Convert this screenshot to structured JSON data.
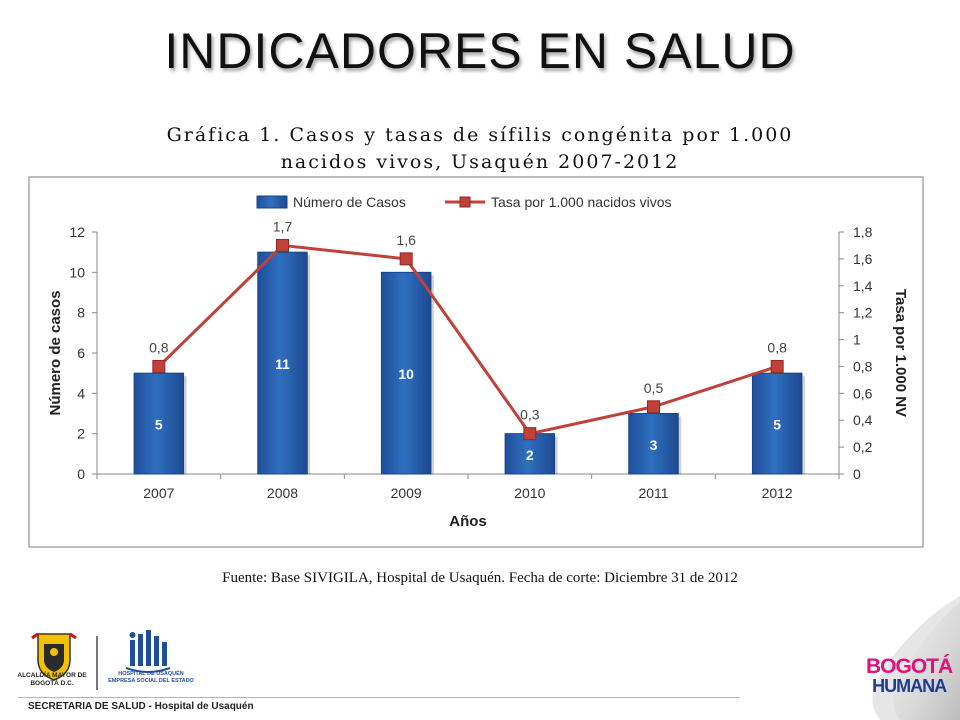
{
  "slide": {
    "title": "INDICADORES EN SALUD"
  },
  "chart": {
    "title_line1": "Gráfica 1. Casos y tasas de sífilis congénita por 1.000",
    "title_line2": "nacidos vivos, Usaquén 2007-2012"
  },
  "source": {
    "label": "Fuente",
    "text": ": Base SIVIGILA, Hospital de Usaquén. Fecha de corte: Diciembre 31 de 2012"
  },
  "footer": {
    "text": "SECRETARIA DE SALUD - Hospital de Usaquén"
  },
  "logos": {
    "left_text": "ALCALDÍA MAYOR DE BOGOTÁ D.C.",
    "left_symbol": "bogota-coat-of-arms-icon",
    "mid_text": "HOSPITAL DE USAQUÉN EMPRESA SOCIAL DEL ESTADO",
    "mid_symbol": "hospital-usaquen-logo",
    "right_top": "BOGOTÁ",
    "right_bottom": "HUMANA"
  },
  "colors": {
    "bars": "#2f6fbf",
    "line": "#c0403a",
    "markers": "#c0403a"
  },
  "chart_data": {
    "type": "bar",
    "categories": [
      "2007",
      "2008",
      "2009",
      "2010",
      "2011",
      "2012"
    ],
    "series": [
      {
        "name": "Número de Casos",
        "type": "bar",
        "axis": "left",
        "values": [
          5,
          11,
          10,
          2,
          3,
          5
        ]
      },
      {
        "name": "Tasa por 1.000 nacidos vivos",
        "type": "line",
        "axis": "right",
        "values": [
          0.8,
          1.7,
          1.6,
          0.3,
          0.5,
          0.8
        ],
        "labels": [
          "0,8",
          "1,7",
          "1,6",
          "0,3",
          "0,5",
          "0,8"
        ]
      }
    ],
    "xlabel": "Años",
    "ylabel": "Número de casos",
    "y2label": "Tasa por 1.000 NV",
    "ylim": [
      0,
      12
    ],
    "yticks": [
      "0",
      "2",
      "4",
      "6",
      "8",
      "10",
      "12"
    ],
    "y2lim": [
      0,
      1.8
    ],
    "y2ticks": [
      "0",
      "0,2",
      "0,4",
      "0,6",
      "0,8",
      "1",
      "1,2",
      "1,4",
      "1,6",
      "1,8"
    ],
    "legend": "top",
    "grid": false
  }
}
